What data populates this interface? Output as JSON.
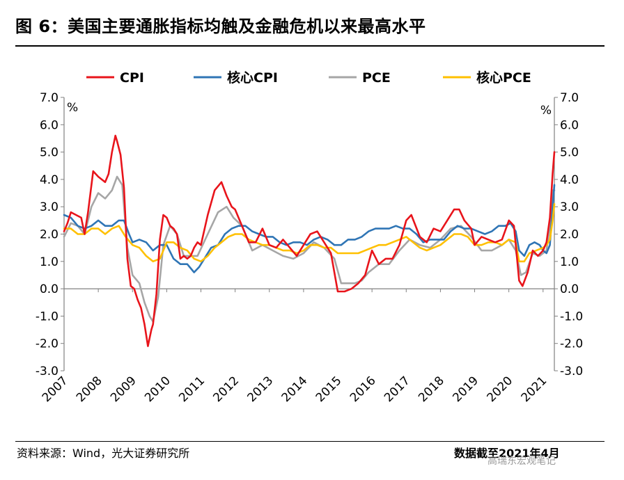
{
  "title": "图 6：美国主要通胀指标均触及金融危机以来最高水平",
  "source": "资料来源：Wind，光大证券研究所",
  "data_source": "数据截至2021年4月",
  "watermark": "高瑞东宏观笔记",
  "chart_data": {
    "type": "line",
    "title": "美国主要通胀指标均触及金融危机以来最高水平",
    "ylabel_left": "%",
    "ylabel_right": "%",
    "ylim": [
      -3.0,
      7.0
    ],
    "yticks": [
      "7.0",
      "6.0",
      "5.0",
      "4.0",
      "3.0",
      "2.0",
      "1.0",
      "0.0",
      "-1.0",
      "-2.0",
      "-3.0"
    ],
    "xlim": [
      2007.0,
      2021.33
    ],
    "xticks": [
      "2007",
      "2008",
      "2009",
      "2010",
      "2011",
      "2012",
      "2013",
      "2014",
      "2015",
      "2016",
      "2017",
      "2018",
      "2019",
      "2020",
      "2021"
    ],
    "legend": [
      "CPI",
      "核心CPI",
      "PCE",
      "核心PCE"
    ],
    "series": [
      {
        "name": "CPI",
        "color": "#e8141b",
        "x": [
          2007.0,
          2007.1,
          2007.2,
          2007.35,
          2007.5,
          2007.6,
          2007.7,
          2007.85,
          2008.0,
          2008.1,
          2008.2,
          2008.3,
          2008.4,
          2008.5,
          2008.55,
          2008.65,
          2008.75,
          2008.85,
          2008.95,
          2009.05,
          2009.15,
          2009.25,
          2009.35,
          2009.45,
          2009.55,
          2009.6,
          2009.7,
          2009.8,
          2009.9,
          2010.0,
          2010.1,
          2010.2,
          2010.3,
          2010.4,
          2010.5,
          2010.6,
          2010.7,
          2010.8,
          2010.9,
          2011.0,
          2011.2,
          2011.4,
          2011.6,
          2011.75,
          2011.9,
          2012.0,
          2012.2,
          2012.4,
          2012.6,
          2012.8,
          2013.0,
          2013.2,
          2013.4,
          2013.6,
          2013.8,
          2014.0,
          2014.2,
          2014.4,
          2014.6,
          2014.8,
          2015.0,
          2015.1,
          2015.2,
          2015.4,
          2015.6,
          2015.8,
          2016.0,
          2016.2,
          2016.4,
          2016.6,
          2016.8,
          2017.0,
          2017.15,
          2017.4,
          2017.6,
          2017.8,
          2018.0,
          2018.2,
          2018.4,
          2018.55,
          2018.7,
          2018.9,
          2019.0,
          2019.2,
          2019.4,
          2019.6,
          2019.8,
          2020.0,
          2020.15,
          2020.3,
          2020.4,
          2020.55,
          2020.7,
          2020.85,
          2021.0,
          2021.1,
          2021.2,
          2021.28,
          2021.33
        ],
        "values": [
          2.1,
          2.4,
          2.8,
          2.7,
          2.6,
          2.0,
          2.8,
          4.3,
          4.1,
          4.0,
          3.9,
          4.2,
          5.0,
          5.6,
          5.4,
          4.9,
          3.7,
          1.1,
          0.1,
          0.0,
          -0.4,
          -0.7,
          -1.3,
          -2.1,
          -1.5,
          -1.3,
          -0.2,
          1.8,
          2.7,
          2.6,
          2.3,
          2.2,
          2.0,
          1.1,
          1.2,
          1.1,
          1.2,
          1.5,
          1.7,
          1.6,
          2.7,
          3.6,
          3.9,
          3.4,
          3.0,
          2.9,
          2.3,
          1.7,
          1.7,
          2.2,
          1.6,
          1.5,
          1.8,
          1.5,
          1.2,
          1.6,
          2.0,
          2.1,
          1.7,
          1.3,
          -0.1,
          -0.1,
          -0.1,
          0.0,
          0.2,
          0.5,
          1.4,
          0.9,
          1.1,
          1.1,
          1.6,
          2.5,
          2.7,
          1.9,
          1.7,
          2.2,
          2.1,
          2.5,
          2.9,
          2.9,
          2.5,
          2.2,
          1.6,
          1.9,
          1.8,
          1.7,
          1.8,
          2.5,
          2.3,
          0.3,
          0.1,
          0.6,
          1.4,
          1.2,
          1.4,
          1.7,
          2.6,
          4.2,
          5.0
        ]
      },
      {
        "name": "核心CPI",
        "color": "#2f75b5",
        "x": [
          2007.0,
          2007.2,
          2007.4,
          2007.6,
          2007.8,
          2008.0,
          2008.2,
          2008.4,
          2008.6,
          2008.75,
          2008.9,
          2009.0,
          2009.2,
          2009.4,
          2009.6,
          2009.8,
          2010.0,
          2010.2,
          2010.4,
          2010.6,
          2010.8,
          2010.95,
          2011.1,
          2011.3,
          2011.5,
          2011.7,
          2011.9,
          2012.1,
          2012.3,
          2012.5,
          2012.7,
          2012.9,
          2013.1,
          2013.3,
          2013.5,
          2013.7,
          2013.9,
          2014.1,
          2014.3,
          2014.5,
          2014.7,
          2014.9,
          2015.1,
          2015.3,
          2015.5,
          2015.7,
          2015.9,
          2016.1,
          2016.3,
          2016.5,
          2016.7,
          2016.9,
          2017.1,
          2017.3,
          2017.5,
          2017.7,
          2017.9,
          2018.1,
          2018.3,
          2018.5,
          2018.7,
          2018.9,
          2019.1,
          2019.3,
          2019.5,
          2019.7,
          2019.9,
          2020.05,
          2020.2,
          2020.3,
          2020.45,
          2020.6,
          2020.75,
          2020.9,
          2021.0,
          2021.1,
          2021.2,
          2021.28,
          2021.33
        ],
        "values": [
          2.7,
          2.6,
          2.3,
          2.2,
          2.3,
          2.5,
          2.3,
          2.3,
          2.5,
          2.5,
          2.0,
          1.7,
          1.8,
          1.7,
          1.4,
          1.6,
          1.6,
          1.1,
          0.9,
          0.9,
          0.6,
          0.8,
          1.1,
          1.5,
          1.6,
          2.0,
          2.2,
          2.3,
          2.3,
          2.1,
          2.0,
          1.9,
          1.9,
          1.7,
          1.6,
          1.7,
          1.7,
          1.6,
          1.8,
          1.9,
          1.8,
          1.6,
          1.6,
          1.8,
          1.8,
          1.9,
          2.1,
          2.2,
          2.2,
          2.2,
          2.3,
          2.2,
          2.2,
          2.0,
          1.7,
          1.8,
          1.8,
          1.8,
          2.1,
          2.3,
          2.2,
          2.2,
          2.1,
          2.0,
          2.1,
          2.3,
          2.3,
          2.4,
          2.1,
          1.4,
          1.2,
          1.6,
          1.7,
          1.6,
          1.4,
          1.3,
          1.6,
          3.0,
          3.8
        ]
      },
      {
        "name": "PCE",
        "color": "#a6a6a6",
        "x": [
          2007.0,
          2007.2,
          2007.4,
          2007.6,
          2007.8,
          2008.0,
          2008.2,
          2008.4,
          2008.55,
          2008.7,
          2008.85,
          2009.0,
          2009.2,
          2009.35,
          2009.5,
          2009.6,
          2009.75,
          2009.9,
          2010.1,
          2010.3,
          2010.5,
          2010.7,
          2010.9,
          2011.2,
          2011.5,
          2011.75,
          2011.95,
          2012.2,
          2012.5,
          2012.8,
          2013.1,
          2013.4,
          2013.7,
          2014.0,
          2014.3,
          2014.6,
          2014.9,
          2015.1,
          2015.3,
          2015.5,
          2015.7,
          2015.9,
          2016.2,
          2016.5,
          2016.8,
          2017.1,
          2017.4,
          2017.7,
          2018.0,
          2018.3,
          2018.6,
          2018.9,
          2019.2,
          2019.5,
          2019.8,
          2020.0,
          2020.2,
          2020.35,
          2020.5,
          2020.7,
          2020.9,
          2021.1,
          2021.2,
          2021.28,
          2021.33
        ],
        "values": [
          1.9,
          2.4,
          2.3,
          2.0,
          3.0,
          3.5,
          3.3,
          3.6,
          4.1,
          3.8,
          1.5,
          0.5,
          0.2,
          -0.5,
          -1.0,
          -1.2,
          -0.3,
          1.6,
          2.3,
          2.0,
          1.2,
          1.2,
          1.2,
          2.0,
          2.8,
          3.0,
          2.6,
          2.3,
          1.4,
          1.6,
          1.4,
          1.2,
          1.1,
          1.3,
          1.7,
          1.5,
          1.1,
          0.2,
          0.2,
          0.2,
          0.3,
          0.6,
          0.9,
          0.9,
          1.4,
          1.8,
          1.6,
          1.5,
          1.8,
          2.2,
          2.3,
          1.9,
          1.4,
          1.4,
          1.6,
          1.8,
          1.4,
          0.5,
          0.6,
          1.3,
          1.2,
          1.4,
          2.3,
          3.6,
          3.6
        ]
      },
      {
        "name": "核心PCE",
        "color": "#ffc000",
        "x": [
          2007.0,
          2007.2,
          2007.4,
          2007.6,
          2007.8,
          2008.0,
          2008.2,
          2008.4,
          2008.6,
          2008.8,
          2009.0,
          2009.2,
          2009.4,
          2009.6,
          2009.8,
          2010.0,
          2010.2,
          2010.4,
          2010.6,
          2010.8,
          2011.0,
          2011.2,
          2011.4,
          2011.6,
          2011.8,
          2012.0,
          2012.2,
          2012.4,
          2012.6,
          2012.8,
          2013.0,
          2013.2,
          2013.4,
          2013.6,
          2013.8,
          2014.0,
          2014.2,
          2014.4,
          2014.6,
          2014.8,
          2015.0,
          2015.2,
          2015.4,
          2015.6,
          2015.8,
          2016.0,
          2016.2,
          2016.4,
          2016.6,
          2016.8,
          2017.0,
          2017.2,
          2017.4,
          2017.6,
          2017.8,
          2018.0,
          2018.2,
          2018.4,
          2018.6,
          2018.8,
          2019.0,
          2019.2,
          2019.4,
          2019.6,
          2019.8,
          2020.0,
          2020.2,
          2020.3,
          2020.45,
          2020.6,
          2020.8,
          2021.0,
          2021.1,
          2021.2,
          2021.28,
          2021.33
        ],
        "values": [
          2.2,
          2.2,
          2.0,
          2.0,
          2.2,
          2.2,
          2.0,
          2.2,
          2.3,
          1.9,
          1.6,
          1.5,
          1.2,
          1.0,
          1.1,
          1.7,
          1.7,
          1.5,
          1.4,
          1.1,
          1.0,
          1.2,
          1.5,
          1.7,
          1.9,
          2.0,
          2.0,
          1.8,
          1.7,
          1.6,
          1.6,
          1.5,
          1.4,
          1.4,
          1.3,
          1.4,
          1.6,
          1.6,
          1.5,
          1.5,
          1.3,
          1.3,
          1.3,
          1.3,
          1.4,
          1.5,
          1.6,
          1.6,
          1.7,
          1.8,
          1.9,
          1.7,
          1.5,
          1.4,
          1.5,
          1.6,
          1.8,
          2.0,
          2.0,
          1.9,
          1.6,
          1.6,
          1.7,
          1.7,
          1.6,
          1.8,
          1.7,
          1.0,
          1.0,
          1.3,
          1.4,
          1.5,
          1.6,
          1.8,
          2.5,
          3.1
        ]
      }
    ]
  }
}
